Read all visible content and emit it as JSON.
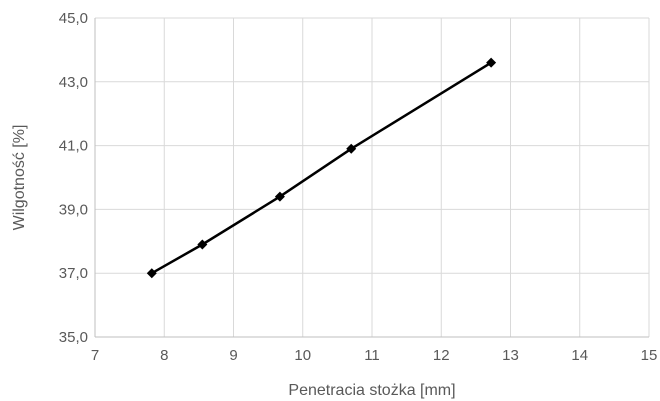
{
  "chart_data": {
    "type": "scatter",
    "title": "",
    "xlabel": "Penetracia stożka [mm]",
    "ylabel": "Wilgotność [%]",
    "xlim": [
      7,
      15
    ],
    "ylim": [
      35,
      45
    ],
    "x_ticks": [
      "7",
      "8",
      "9",
      "10",
      "11",
      "12",
      "13",
      "14",
      "15"
    ],
    "y_ticks": [
      "35,0",
      "37,0",
      "39,0",
      "41,0",
      "43,0",
      "45,0"
    ],
    "grid": true,
    "legend": "none",
    "series": [
      {
        "color": "#000000",
        "marker": "diamond",
        "line": true,
        "points": [
          {
            "x": 7.82,
            "y": 37.0
          },
          {
            "x": 8.55,
            "y": 37.9
          },
          {
            "x": 9.67,
            "y": 39.4
          },
          {
            "x": 10.7,
            "y": 40.9
          },
          {
            "x": 12.72,
            "y": 43.6
          }
        ]
      }
    ]
  }
}
